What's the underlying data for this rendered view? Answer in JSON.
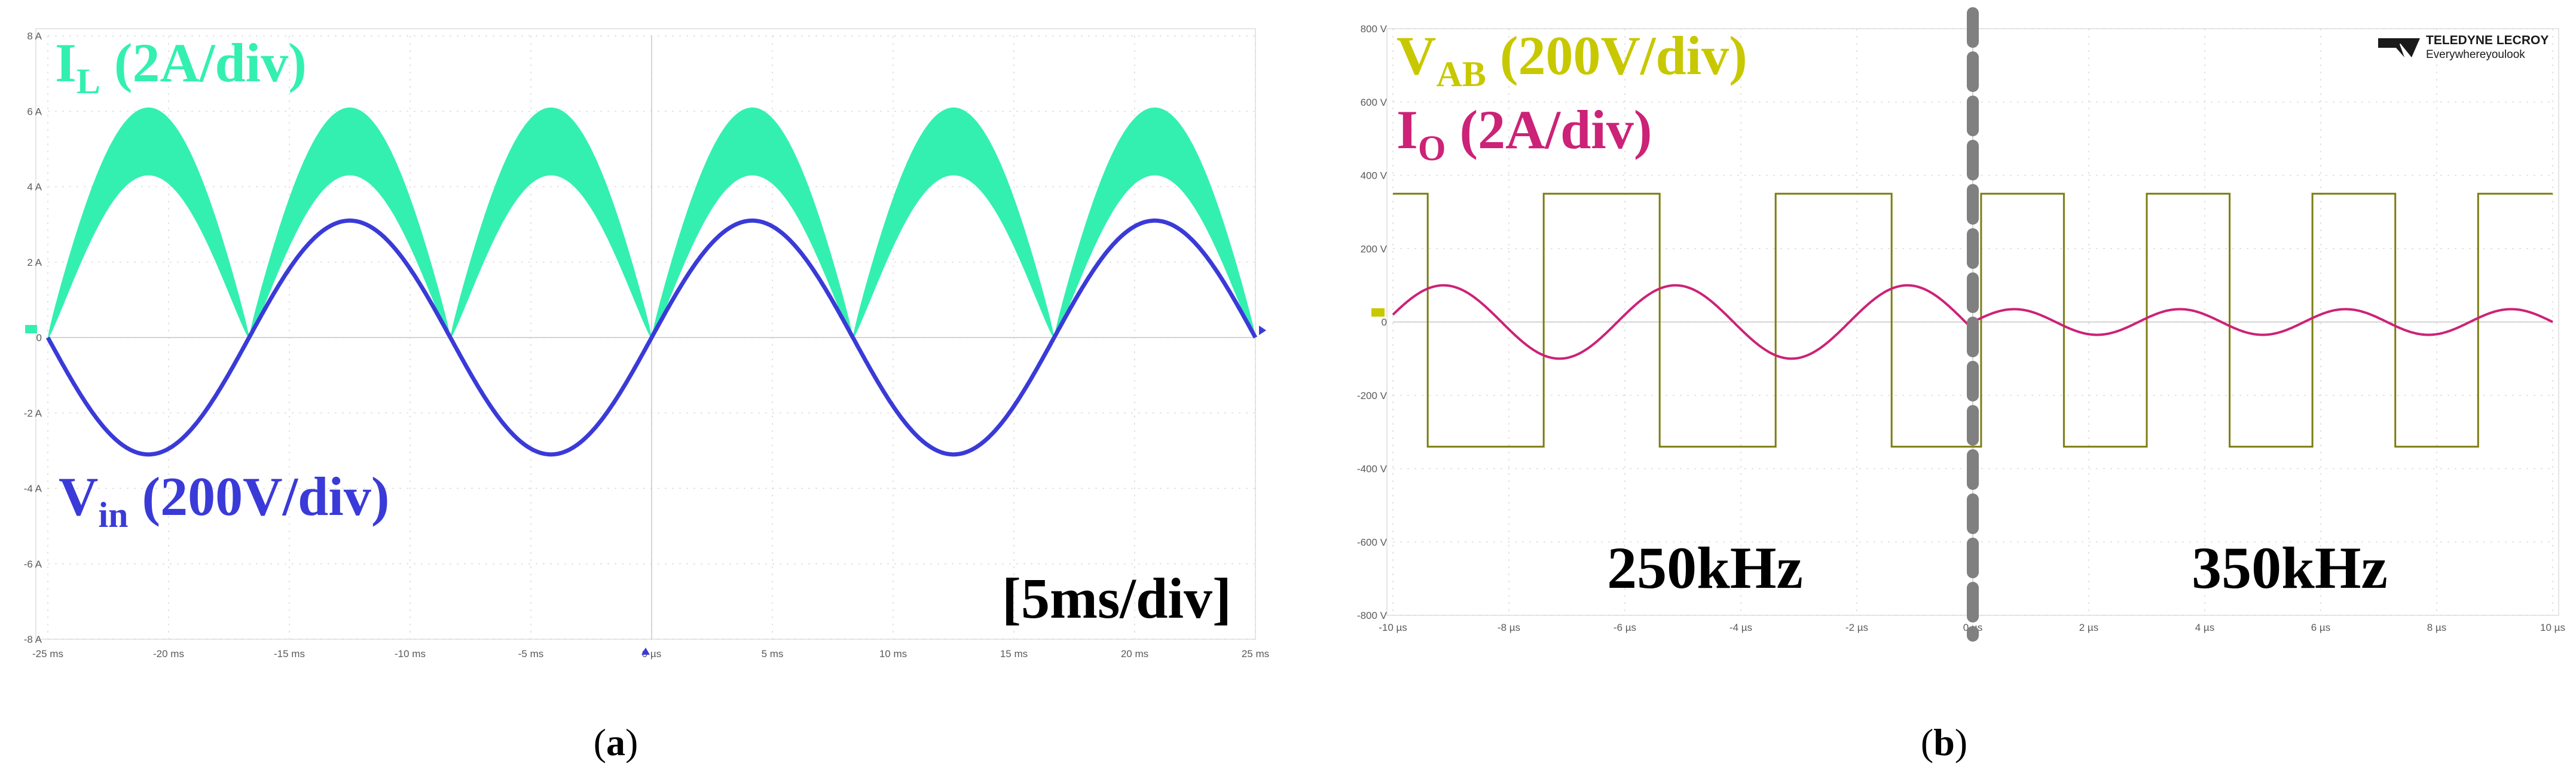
{
  "chart_data": [
    {
      "type": "line",
      "panel": "a",
      "caption_prefix": "(",
      "caption_letter": "a",
      "caption_suffix": ")",
      "xlim": [
        -25,
        25
      ],
      "x_unit": "ms",
      "x_ticks": [
        "-25 ms",
        "-20 ms",
        "-15 ms",
        "-10 ms",
        "-5 ms",
        "0 µs",
        "5 ms",
        "10 ms",
        "15 ms",
        "20 ms",
        "25 ms"
      ],
      "ylim": [
        -8,
        8
      ],
      "y_ticks": [
        "8 A",
        "6 A",
        "4 A",
        "2 A",
        "0",
        "-2 A",
        "-4 A",
        "-6 A",
        "-8 A"
      ],
      "timebase": "[5ms/div]",
      "series": [
        {
          "name": "I_L",
          "label_main": "I",
          "label_sub": "L",
          "label_rest": " (2A/div)",
          "color": "#33f0b0",
          "line_frequency_hz": 60,
          "peak_div": 2.6,
          "ripple_div": 0.9,
          "waveform": "rectified sine with high-frequency ripple"
        },
        {
          "name": "V_in",
          "label_main": "V",
          "label_sub": "in",
          "label_rest": " (200V/div)",
          "color": "#3a3ad8",
          "line_frequency_hz": 60,
          "amplitude_div": 1.55,
          "waveform": "sine"
        }
      ]
    },
    {
      "type": "line",
      "panel": "b",
      "caption_prefix": "(",
      "caption_letter": "b",
      "caption_suffix": ")",
      "xlim": [
        -10,
        10
      ],
      "x_unit": "µs",
      "x_ticks": [
        "-10 µs",
        "-8 µs",
        "-6 µs",
        "-4 µs",
        "-2 µs",
        "0 µs",
        "2 µs",
        "4 µs",
        "6 µs",
        "8 µs",
        "10 µs"
      ],
      "ylim": [
        -800,
        800
      ],
      "y_ticks": [
        "800 V",
        "600 V",
        "400 V",
        "200 V",
        "0",
        "-200 V",
        "-400 V",
        "-600 V",
        "-800 V"
      ],
      "brand_name": "TELEDYNE LECROY",
      "brand_tagline": "Everywhereyoulook",
      "segments": [
        {
          "label": "250kHz",
          "x_range": [
            -10,
            0
          ],
          "frequency_khz": 250
        },
        {
          "label": "350kHz",
          "x_range": [
            0,
            10
          ],
          "frequency_khz": 350
        }
      ],
      "series": [
        {
          "name": "V_AB",
          "label_main": "V",
          "label_sub": "AB",
          "label_rest": " (200V/div)",
          "color": "#c8c800",
          "trace_color": "#7d7d10",
          "high": 350,
          "low": -340,
          "waveform": "square"
        },
        {
          "name": "I_O",
          "label_main": "I",
          "label_sub": "O",
          "label_rest": " (2A/div)",
          "color": "#cc2277",
          "amplitude_250khz": 100,
          "amplitude_350khz": 35,
          "waveform": "sine"
        }
      ]
    }
  ]
}
